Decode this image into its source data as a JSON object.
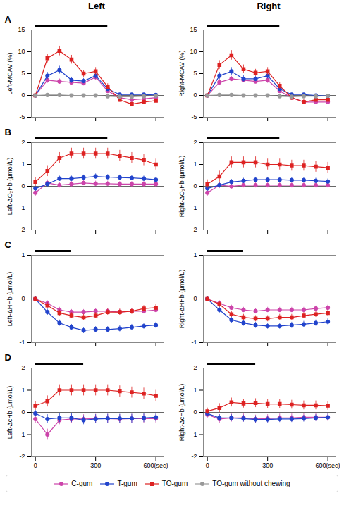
{
  "chart_data": [
    {
      "type": "line",
      "title": "Left",
      "annotations": [
        "A"
      ],
      "ylabel": "Left-MCAV (%)",
      "legend": "bottom",
      "x": [
        0,
        60,
        120,
        180,
        240,
        300,
        360,
        420,
        480,
        540,
        600
      ],
      "xlim": [
        -20,
        640
      ],
      "xticks": [
        0,
        300,
        600
      ],
      "ylim": [
        -5,
        15
      ],
      "yticks": [
        -5,
        0,
        5,
        10,
        15
      ],
      "tick_labels": "y",
      "hlines": [
        0
      ],
      "chewing_bar": [
        0,
        360
      ],
      "series": [
        {
          "name": "C-gum",
          "color": "#CC44AA",
          "marker": "circle",
          "values": [
            0,
            3.5,
            3.2,
            3.0,
            2.8,
            4.2,
            1.0,
            -0.5,
            -1.0,
            -0.8,
            -0.5
          ],
          "yerr": [
            0.3,
            0.7,
            0.6,
            0.6,
            0.5,
            0.7,
            0.5,
            0.4,
            0.4,
            0.4,
            0.3
          ]
        },
        {
          "name": "T-gum",
          "color": "#2244CC",
          "marker": "circle",
          "values": [
            0,
            4.5,
            5.8,
            3.5,
            3.3,
            4.5,
            1.5,
            0.2,
            0.2,
            0.2,
            0.1
          ],
          "yerr": [
            0.3,
            0.8,
            0.9,
            0.7,
            0.6,
            0.7,
            0.5,
            0.3,
            0.3,
            0.3,
            0.2
          ]
        },
        {
          "name": "TO-gum",
          "color": "#DD2222",
          "marker": "square",
          "values": [
            0,
            8.5,
            10.2,
            8.2,
            5.0,
            5.5,
            2.0,
            -1.0,
            -2.0,
            -1.5,
            -1.2
          ],
          "yerr": [
            0.4,
            1.0,
            1.1,
            1.0,
            0.8,
            0.9,
            0.7,
            0.5,
            0.5,
            0.5,
            0.4
          ]
        },
        {
          "name": "TO-gum without chewing",
          "color": "#999999",
          "marker": "circle",
          "values": [
            0,
            0.1,
            0.1,
            0.0,
            0.0,
            0.0,
            -0.2,
            -0.3,
            -0.3,
            -0.2,
            -0.1
          ],
          "yerr": [
            0.15,
            0.15,
            0.15,
            0.15,
            0.15,
            0.15,
            0.15,
            0.15,
            0.15,
            0.15,
            0.15
          ]
        }
      ]
    },
    {
      "type": "line",
      "title": "Right",
      "ylabel": "Right-MCAV (%)",
      "x": [
        0,
        60,
        120,
        180,
        240,
        300,
        360,
        420,
        480,
        540,
        600
      ],
      "xlim": [
        -20,
        640
      ],
      "xticks": [
        0,
        300,
        600
      ],
      "ylim": [
        -5,
        15
      ],
      "yticks": [
        -5,
        0,
        5,
        10,
        15
      ],
      "tick_labels": "y",
      "hlines": [
        0
      ],
      "chewing_bar": [
        0,
        360
      ],
      "series": [
        {
          "name": "C-gum",
          "color": "#CC44AA",
          "marker": "circle",
          "values": [
            0,
            3.0,
            3.8,
            3.5,
            3.2,
            3.5,
            1.0,
            -0.5,
            -1.5,
            -1.5,
            -1.5
          ],
          "yerr": [
            0.3,
            0.7,
            0.6,
            0.6,
            0.5,
            0.7,
            0.5,
            0.4,
            0.4,
            0.4,
            0.3
          ]
        },
        {
          "name": "T-gum",
          "color": "#2244CC",
          "marker": "circle",
          "values": [
            0,
            4.5,
            5.5,
            3.8,
            3.8,
            4.5,
            1.5,
            0.2,
            0.2,
            0.0,
            -0.1
          ],
          "yerr": [
            0.3,
            0.8,
            0.9,
            0.7,
            0.6,
            0.7,
            0.5,
            0.3,
            0.3,
            0.3,
            0.2
          ]
        },
        {
          "name": "TO-gum",
          "color": "#DD2222",
          "marker": "square",
          "values": [
            0,
            7.0,
            9.2,
            6.0,
            5.2,
            5.5,
            2.2,
            -0.5,
            -1.5,
            -1.0,
            -1.0
          ],
          "yerr": [
            0.4,
            1.0,
            1.1,
            1.0,
            0.8,
            0.9,
            0.7,
            0.5,
            0.5,
            0.5,
            0.4
          ]
        },
        {
          "name": "TO-gum without chewing",
          "color": "#999999",
          "marker": "circle",
          "values": [
            0,
            0.1,
            0.1,
            0.0,
            0.0,
            0.0,
            -0.2,
            -0.3,
            -0.2,
            -0.2,
            -0.1
          ],
          "yerr": [
            0.15,
            0.15,
            0.15,
            0.15,
            0.15,
            0.15,
            0.15,
            0.15,
            0.15,
            0.15,
            0.15
          ]
        }
      ]
    },
    {
      "type": "line",
      "annotations": [
        "B"
      ],
      "ylabel": "Left-ΔO₂Hb (μmol/L)",
      "x": [
        0,
        60,
        120,
        180,
        240,
        300,
        360,
        420,
        480,
        540,
        600
      ],
      "xlim": [
        -20,
        640
      ],
      "xticks": [
        0,
        300,
        600
      ],
      "ylim": [
        -2,
        2
      ],
      "yticks": [
        -2,
        -1,
        0,
        1,
        2
      ],
      "tick_labels": "y",
      "hlines": [
        0
      ],
      "chewing_bar": [
        0,
        360
      ],
      "series": [
        {
          "name": "C-gum",
          "color": "#CC44AA",
          "marker": "circle",
          "values": [
            -0.3,
            0.15,
            0.05,
            0.1,
            0.15,
            0.12,
            0.12,
            0.1,
            0.1,
            0.1,
            0.1
          ],
          "yerr": [
            0.15,
            0.15,
            0.12,
            0.12,
            0.12,
            0.12,
            0.12,
            0.12,
            0.12,
            0.12,
            0.12
          ]
        },
        {
          "name": "T-gum",
          "color": "#2244CC",
          "marker": "circle",
          "values": [
            -0.1,
            0.1,
            0.35,
            0.35,
            0.4,
            0.45,
            0.42,
            0.4,
            0.38,
            0.35,
            0.3
          ],
          "yerr": [
            0.1,
            0.12,
            0.12,
            0.12,
            0.12,
            0.12,
            0.12,
            0.12,
            0.12,
            0.12,
            0.12
          ]
        },
        {
          "name": "TO-gum",
          "color": "#DD2222",
          "marker": "square",
          "values": [
            0.2,
            0.7,
            1.3,
            1.5,
            1.5,
            1.5,
            1.5,
            1.4,
            1.3,
            1.2,
            1.0
          ],
          "yerr": [
            0.2,
            0.25,
            0.25,
            0.25,
            0.25,
            0.25,
            0.25,
            0.25,
            0.25,
            0.25,
            0.25
          ]
        }
      ]
    },
    {
      "type": "line",
      "ylabel": "Right-ΔO₂Hb (μmol/L)",
      "x": [
        0,
        60,
        120,
        180,
        240,
        300,
        360,
        420,
        480,
        540,
        600
      ],
      "xlim": [
        -20,
        640
      ],
      "xticks": [
        0,
        300,
        600
      ],
      "ylim": [
        -2,
        2
      ],
      "yticks": [
        -2,
        -1,
        0,
        1,
        2
      ],
      "tick_labels": "y",
      "hlines": [
        0
      ],
      "chewing_bar": [
        0,
        360
      ],
      "series": [
        {
          "name": "C-gum",
          "color": "#CC44AA",
          "marker": "circle",
          "values": [
            -0.3,
            0.05,
            0.0,
            0.05,
            0.05,
            0.05,
            0.05,
            0.05,
            0.05,
            0.05,
            0.05
          ],
          "yerr": [
            0.15,
            0.15,
            0.12,
            0.12,
            0.12,
            0.12,
            0.12,
            0.12,
            0.12,
            0.12,
            0.12
          ]
        },
        {
          "name": "T-gum",
          "color": "#2244CC",
          "marker": "circle",
          "values": [
            -0.1,
            0.05,
            0.2,
            0.25,
            0.3,
            0.3,
            0.3,
            0.28,
            0.28,
            0.25,
            0.22
          ],
          "yerr": [
            0.1,
            0.12,
            0.12,
            0.12,
            0.12,
            0.12,
            0.12,
            0.12,
            0.12,
            0.12,
            0.12
          ]
        },
        {
          "name": "TO-gum",
          "color": "#DD2222",
          "marker": "square",
          "values": [
            0.1,
            0.45,
            1.1,
            1.1,
            1.1,
            1.0,
            1.0,
            0.95,
            0.95,
            0.9,
            0.85
          ],
          "yerr": [
            0.2,
            0.25,
            0.25,
            0.25,
            0.25,
            0.25,
            0.25,
            0.25,
            0.25,
            0.25,
            0.25
          ]
        }
      ]
    },
    {
      "type": "line",
      "annotations": [
        "C"
      ],
      "ylabel": "Left-ΔHHb (μmol/L)",
      "x": [
        0,
        60,
        120,
        180,
        240,
        300,
        360,
        420,
        480,
        540,
        600
      ],
      "xlim": [
        -20,
        640
      ],
      "xticks": [
        0,
        300,
        600
      ],
      "ylim": [
        -1,
        1
      ],
      "yticks": [
        -1,
        0,
        1
      ],
      "tick_labels": "y",
      "hlines": [
        0
      ],
      "chewing_bar": [
        0,
        180
      ],
      "series": [
        {
          "name": "C-gum",
          "color": "#CC44AA",
          "marker": "circle",
          "values": [
            0.0,
            -0.1,
            -0.25,
            -0.3,
            -0.3,
            -0.28,
            -0.28,
            -0.3,
            -0.28,
            -0.28,
            -0.25
          ],
          "yerr": [
            0.05,
            0.06,
            0.06,
            0.06,
            0.06,
            0.06,
            0.06,
            0.06,
            0.06,
            0.06,
            0.06
          ]
        },
        {
          "name": "T-gum",
          "color": "#2244CC",
          "marker": "circle",
          "values": [
            0.0,
            -0.3,
            -0.55,
            -0.65,
            -0.72,
            -0.7,
            -0.7,
            -0.68,
            -0.65,
            -0.62,
            -0.6
          ],
          "yerr": [
            0.05,
            0.07,
            0.07,
            0.07,
            0.07,
            0.07,
            0.07,
            0.07,
            0.07,
            0.07,
            0.07
          ]
        },
        {
          "name": "TO-gum",
          "color": "#DD2222",
          "marker": "square",
          "values": [
            0.0,
            -0.15,
            -0.32,
            -0.38,
            -0.42,
            -0.38,
            -0.3,
            -0.3,
            -0.28,
            -0.22,
            -0.2
          ],
          "yerr": [
            0.05,
            0.07,
            0.07,
            0.07,
            0.07,
            0.07,
            0.07,
            0.07,
            0.07,
            0.07,
            0.07
          ]
        }
      ]
    },
    {
      "type": "line",
      "ylabel": "Right-ΔHHb (μmol/L)",
      "x": [
        0,
        60,
        120,
        180,
        240,
        300,
        360,
        420,
        480,
        540,
        600
      ],
      "xlim": [
        -20,
        640
      ],
      "xticks": [
        0,
        300,
        600
      ],
      "ylim": [
        -1,
        1
      ],
      "yticks": [
        -1,
        0,
        1
      ],
      "tick_labels": "y",
      "hlines": [
        0
      ],
      "chewing_bar": [
        0,
        180
      ],
      "series": [
        {
          "name": "C-gum",
          "color": "#CC44AA",
          "marker": "circle",
          "values": [
            0.0,
            -0.1,
            -0.2,
            -0.25,
            -0.28,
            -0.25,
            -0.25,
            -0.25,
            -0.25,
            -0.22,
            -0.2
          ],
          "yerr": [
            0.05,
            0.06,
            0.06,
            0.06,
            0.06,
            0.06,
            0.06,
            0.06,
            0.06,
            0.06,
            0.06
          ]
        },
        {
          "name": "T-gum",
          "color": "#2244CC",
          "marker": "circle",
          "values": [
            0.0,
            -0.25,
            -0.48,
            -0.55,
            -0.6,
            -0.62,
            -0.62,
            -0.6,
            -0.58,
            -0.55,
            -0.52
          ],
          "yerr": [
            0.05,
            0.07,
            0.07,
            0.07,
            0.07,
            0.07,
            0.07,
            0.07,
            0.07,
            0.07,
            0.07
          ]
        },
        {
          "name": "TO-gum",
          "color": "#DD2222",
          "marker": "square",
          "values": [
            0.0,
            -0.12,
            -0.35,
            -0.42,
            -0.45,
            -0.45,
            -0.42,
            -0.42,
            -0.38,
            -0.35,
            -0.32
          ],
          "yerr": [
            0.05,
            0.07,
            0.07,
            0.07,
            0.07,
            0.07,
            0.07,
            0.07,
            0.07,
            0.07,
            0.07
          ]
        }
      ]
    },
    {
      "type": "line",
      "annotations": [
        "D"
      ],
      "ylabel": "Left-ΔcHb (μmol/L)",
      "x": [
        0,
        60,
        120,
        180,
        240,
        300,
        360,
        420,
        480,
        540,
        600
      ],
      "xlim": [
        -20,
        640
      ],
      "xticks": [
        0,
        300,
        {
          "value": 600,
          "label": "600(sec)"
        }
      ],
      "ylim": [
        -2,
        2
      ],
      "yticks": [
        -2,
        -1,
        0,
        1,
        2
      ],
      "hlines": [
        0
      ],
      "chewing_bar": [
        0,
        240
      ],
      "series": [
        {
          "name": "C-gum",
          "color": "#CC44AA",
          "marker": "circle",
          "values": [
            -0.3,
            -1.0,
            -0.35,
            -0.3,
            -0.3,
            -0.28,
            -0.28,
            -0.3,
            -0.28,
            -0.28,
            -0.28
          ],
          "yerr": [
            0.2,
            0.25,
            0.2,
            0.2,
            0.2,
            0.2,
            0.2,
            0.2,
            0.2,
            0.2,
            0.2
          ]
        },
        {
          "name": "T-gum",
          "color": "#2244CC",
          "marker": "circle",
          "values": [
            -0.05,
            -0.3,
            -0.25,
            -0.25,
            -0.35,
            -0.3,
            -0.28,
            -0.28,
            -0.28,
            -0.25,
            -0.22
          ],
          "yerr": [
            0.15,
            0.2,
            0.2,
            0.2,
            0.2,
            0.2,
            0.2,
            0.2,
            0.2,
            0.2,
            0.2
          ]
        },
        {
          "name": "TO-gum",
          "color": "#DD2222",
          "marker": "square",
          "values": [
            0.3,
            0.5,
            1.0,
            1.0,
            1.0,
            1.0,
            1.0,
            0.95,
            0.9,
            0.85,
            0.75
          ],
          "yerr": [
            0.2,
            0.25,
            0.25,
            0.25,
            0.25,
            0.25,
            0.25,
            0.25,
            0.25,
            0.25,
            0.25
          ]
        }
      ]
    },
    {
      "type": "line",
      "ylabel": "Right-ΔcHb (μmol/L)",
      "x": [
        0,
        60,
        120,
        180,
        240,
        300,
        360,
        420,
        480,
        540,
        600
      ],
      "xlim": [
        -20,
        640
      ],
      "xticks": [
        0,
        300,
        {
          "value": 600,
          "label": "600(sec)"
        }
      ],
      "ylim": [
        -2,
        2
      ],
      "yticks": [
        -2,
        -1,
        0,
        1,
        2
      ],
      "hlines": [
        0
      ],
      "chewing_bar": [
        0,
        240
      ],
      "series": [
        {
          "name": "C-gum",
          "color": "#CC44AA",
          "marker": "circle",
          "values": [
            -0.1,
            -0.3,
            -0.25,
            -0.25,
            -0.3,
            -0.28,
            -0.25,
            -0.25,
            -0.22,
            -0.22,
            -0.22
          ],
          "yerr": [
            0.15,
            0.2,
            0.18,
            0.18,
            0.18,
            0.18,
            0.18,
            0.18,
            0.18,
            0.18,
            0.18
          ]
        },
        {
          "name": "T-gum",
          "color": "#2244CC",
          "marker": "circle",
          "values": [
            -0.05,
            -0.25,
            -0.25,
            -0.28,
            -0.32,
            -0.32,
            -0.3,
            -0.3,
            -0.28,
            -0.25,
            -0.22
          ],
          "yerr": [
            0.12,
            0.15,
            0.15,
            0.15,
            0.15,
            0.15,
            0.15,
            0.15,
            0.15,
            0.15,
            0.15
          ]
        },
        {
          "name": "TO-gum",
          "color": "#DD2222",
          "marker": "square",
          "values": [
            0.05,
            0.2,
            0.45,
            0.4,
            0.42,
            0.38,
            0.38,
            0.35,
            0.32,
            0.32,
            0.3
          ],
          "yerr": [
            0.15,
            0.2,
            0.2,
            0.2,
            0.2,
            0.2,
            0.2,
            0.2,
            0.2,
            0.2,
            0.2
          ]
        }
      ]
    }
  ]
}
